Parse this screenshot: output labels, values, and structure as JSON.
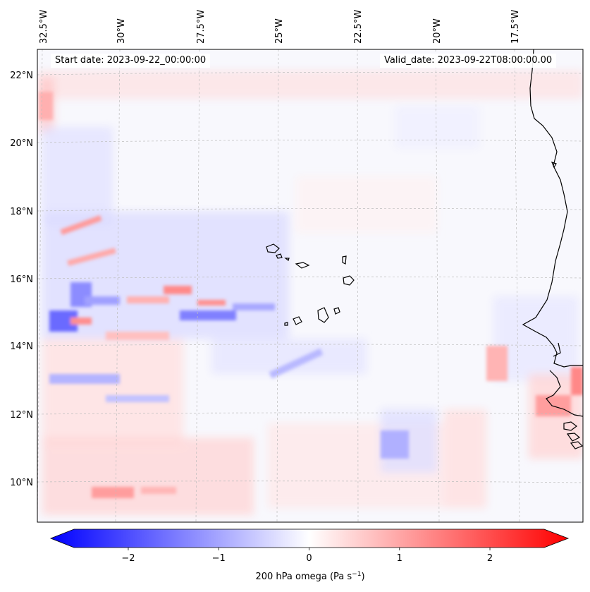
{
  "map": {
    "start_date_label": "Start date: 2023-09-22_00:00:00",
    "valid_date_label": "Valid_date: 2023-09-22T08:00:00.00",
    "lon_labels": [
      "32.5°W",
      "30°W",
      "27.5°W",
      "25°W",
      "22.5°W",
      "20°W",
      "17.5°W"
    ],
    "lat_labels": [
      "22°N",
      "20°N",
      "18°N",
      "16°N",
      "14°N",
      "12°N",
      "10°N"
    ]
  },
  "colorbar": {
    "ticks": [
      "−2",
      "−1",
      "0",
      "1",
      "2"
    ],
    "title_prefix": "200 hPa omega (Pa s",
    "title_sup": "−1",
    "title_suffix": ")",
    "min": -2.6,
    "max": 2.6,
    "colors": {
      "neg": "#0000ff",
      "zero": "#ffffff",
      "pos": "#ff0000"
    }
  }
}
